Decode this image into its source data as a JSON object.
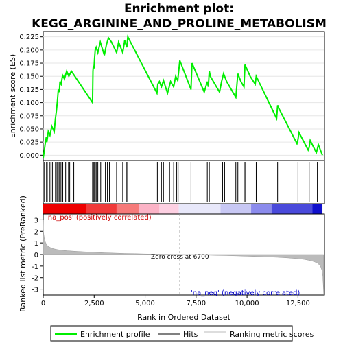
{
  "chart_data": {
    "type": "line",
    "title_line1": "Enrichment plot:",
    "title_line2": "KEGG_ARGININE_AND_PROLINE_METABOLISM",
    "top_panel": {
      "ylabel": "Enrichment score (ES)",
      "ylim": [
        -0.01,
        0.235
      ],
      "yticks": [
        0.0,
        0.025,
        0.05,
        0.075,
        0.1,
        0.125,
        0.15,
        0.175,
        0.2,
        0.225
      ],
      "ytick_labels": [
        "0.000",
        "0.025",
        "0.050",
        "0.075",
        "0.100",
        "0.125",
        "0.150",
        "0.175",
        "0.200",
        "0.225"
      ],
      "grid": true,
      "series": [
        {
          "name": "Enrichment profile",
          "color": "#00ee00",
          "x": [
            0,
            40,
            90,
            150,
            180,
            250,
            330,
            420,
            540,
            600,
            650,
            700,
            740,
            790,
            820,
            880,
            950,
            1040,
            1150,
            1260,
            1380,
            1550,
            2420,
            2440,
            2460,
            2490,
            2520,
            2550,
            2600,
            2680,
            2800,
            3000,
            3100,
            3200,
            3350,
            3600,
            3700,
            3900,
            4000,
            4100,
            4150,
            5580,
            5620,
            5700,
            5800,
            5900,
            6100,
            6250,
            6400,
            6500,
            6600,
            6700,
            7250,
            7300,
            7900,
            8050,
            8100,
            8150,
            8200,
            8650,
            8750,
            8850,
            9000,
            9450,
            9550,
            9700,
            9850,
            9900,
            10150,
            10400,
            10450,
            11450,
            11500,
            11550,
            12450,
            12500,
            12550,
            13000,
            13050,
            13100,
            13400,
            13450,
            13500,
            13700
          ],
          "y": [
            -0.005,
            0.005,
            0.02,
            0.035,
            0.025,
            0.045,
            0.038,
            0.055,
            0.045,
            0.07,
            0.085,
            0.105,
            0.125,
            0.12,
            0.14,
            0.135,
            0.152,
            0.145,
            0.16,
            0.15,
            0.16,
            0.15,
            0.1,
            0.16,
            0.17,
            0.165,
            0.185,
            0.2,
            0.205,
            0.195,
            0.215,
            0.19,
            0.21,
            0.223,
            0.215,
            0.195,
            0.215,
            0.195,
            0.218,
            0.205,
            0.225,
            0.118,
            0.135,
            0.14,
            0.13,
            0.142,
            0.118,
            0.14,
            0.13,
            0.15,
            0.142,
            0.18,
            0.125,
            0.175,
            0.12,
            0.14,
            0.13,
            0.16,
            0.15,
            0.12,
            0.14,
            0.155,
            0.14,
            0.11,
            0.155,
            0.14,
            0.13,
            0.172,
            0.15,
            0.135,
            0.15,
            0.07,
            0.095,
            0.09,
            0.022,
            0.03,
            0.043,
            0.01,
            0.015,
            0.028,
            0.005,
            0.012,
            0.02,
            0.0
          ]
        }
      ]
    },
    "hits_panel": {
      "hit_positions": [
        60,
        160,
        200,
        330,
        450,
        600,
        640,
        700,
        740,
        800,
        870,
        960,
        1100,
        1240,
        1300,
        1500,
        2420,
        2460,
        2500,
        2550,
        2600,
        2680,
        2820,
        3050,
        3150,
        3250,
        3600,
        3900,
        4100,
        4150,
        5600,
        5800,
        5900,
        6200,
        6400,
        6550,
        6620,
        7250,
        8050,
        8150,
        8800,
        8900,
        9450,
        9550,
        9850,
        9900,
        10450,
        11500,
        12500,
        13050,
        13450
      ]
    },
    "metric_panel": {
      "ylabel": "Ranked list metric (PreRanked)",
      "xlabel": "Rank in Ordered Dataset",
      "ylim": [
        -3.5,
        3.5
      ],
      "yticks": [
        -3,
        -2,
        -1,
        0,
        1,
        2,
        3
      ],
      "ytick_labels": [
        "-3",
        "-2",
        "-1",
        "0",
        "1",
        "2",
        "3"
      ],
      "xlim": [
        0,
        13800
      ],
      "xticks": [
        0,
        2500,
        5000,
        7500,
        10000,
        12500
      ],
      "xtick_labels": [
        "0",
        "2,500",
        "5,000",
        "7,500",
        "10,000",
        "12,500"
      ],
      "curve_x": [
        0,
        10,
        30,
        60,
        100,
        150,
        220,
        300,
        400,
        550,
        700,
        900,
        1200,
        1600,
        2000,
        2500,
        3000,
        3500,
        4000,
        4500,
        5000,
        5500,
        6000,
        6500,
        6700,
        7000,
        7500,
        8000,
        8500,
        9000,
        9500,
        10000,
        10500,
        11000,
        11500,
        12000,
        12500,
        12800,
        13100,
        13300,
        13450,
        13550,
        13620,
        13680,
        13720,
        13760
      ],
      "curve_y": [
        3.0,
        2.1,
        1.7,
        1.35,
        1.1,
        0.9,
        0.75,
        0.65,
        0.55,
        0.48,
        0.42,
        0.37,
        0.32,
        0.27,
        0.23,
        0.19,
        0.15,
        0.12,
        0.09,
        0.07,
        0.05,
        0.035,
        0.02,
        0.005,
        0.0,
        -0.01,
        -0.03,
        -0.05,
        -0.07,
        -0.09,
        -0.11,
        -0.14,
        -0.17,
        -0.2,
        -0.24,
        -0.29,
        -0.36,
        -0.42,
        -0.52,
        -0.62,
        -0.75,
        -0.9,
        -1.1,
        -1.4,
        -1.9,
        -3.4
      ]
    },
    "zero_cross": 6700,
    "label_pos": "'na_pos' (positively correlated)",
    "label_neg": "'na_neg' (negatively correlated)",
    "label_zero": "Zero cross at 6700",
    "legend": [
      {
        "label": "Enrichment profile",
        "color": "#00ee00"
      },
      {
        "label": "Hits",
        "color": "#000000"
      },
      {
        "label": "Ranking metric scores",
        "color": "#bbbbbb"
      }
    ]
  }
}
